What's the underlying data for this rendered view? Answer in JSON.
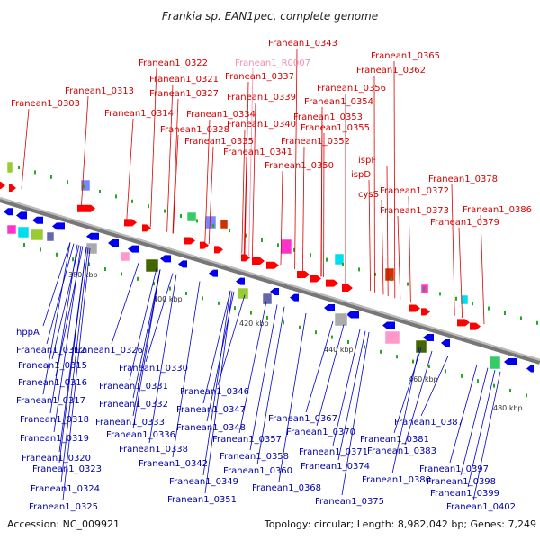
{
  "title": "Frankia sp. EAN1pec, complete genome",
  "footer": {
    "accession": "Accession: NC_009921",
    "summary": "Topology: circular; Length: 8,982,042 bp; Genes: 7,249"
  },
  "colors": {
    "forward": "#ff0000",
    "reverse": "#0000ee",
    "rna": "#f08fb0",
    "backbone": "#888888",
    "tick": "#22aa22"
  },
  "ticks": [
    "380 kbp",
    "400 kbp",
    "420 kbp",
    "440 kbp",
    "460 kbp",
    "480 kbp"
  ],
  "top_labels": [
    "Franean1_0303",
    "Franean1_0313",
    "Franean1_0314",
    "Franean1_0322",
    "Franean1_0321",
    "Franean1_0327",
    "Franean1_0328",
    "Franean1_0334",
    "Franean1_0335",
    "Franean1_R0007",
    "Franean1_0337",
    "Franean1_0339",
    "Franean1_0340",
    "Franean1_0341",
    "Franean1_0343",
    "Franean1_0350",
    "Franean1_0352",
    "Franean1_0353",
    "Franean1_0354",
    "Franean1_0355",
    "Franean1_0356",
    "Franean1_0362",
    "Franean1_0365",
    "ispF",
    "ispD",
    "cysS",
    "Franean1_0372",
    "Franean1_0373",
    "Franean1_0378",
    "Franean1_0379",
    "Franean1_0386"
  ],
  "bottom_labels": [
    "hppA",
    "Franean1_0312",
    "Franean1_0315",
    "Franean1_0316",
    "Franean1_0317",
    "Franean1_0318",
    "Franean1_0319",
    "Franean1_0320",
    "Franean1_0323",
    "Franean1_0324",
    "Franean1_0325",
    "Franean1_0326",
    "Franean1_0330",
    "Franean1_0331",
    "Franean1_0332",
    "Franean1_0333",
    "Franean1_0336",
    "Franean1_0338",
    "Franean1_0342",
    "Franean1_0346",
    "Franean1_0347",
    "Franean1_0348",
    "Franean1_0349",
    "Franean1_0351",
    "Franean1_0357",
    "Franean1_0358",
    "Franean1_0360",
    "Franean1_0367",
    "Franean1_0368",
    "Franean1_0370",
    "Franean1_0371",
    "Franean1_0374",
    "Franean1_0375",
    "Franean1_0380",
    "Franean1_0381",
    "Franean1_0383",
    "Franean1_0387",
    "Franean1_0397",
    "Franean1_0398",
    "Franean1_0399",
    "Franean1_0402"
  ]
}
